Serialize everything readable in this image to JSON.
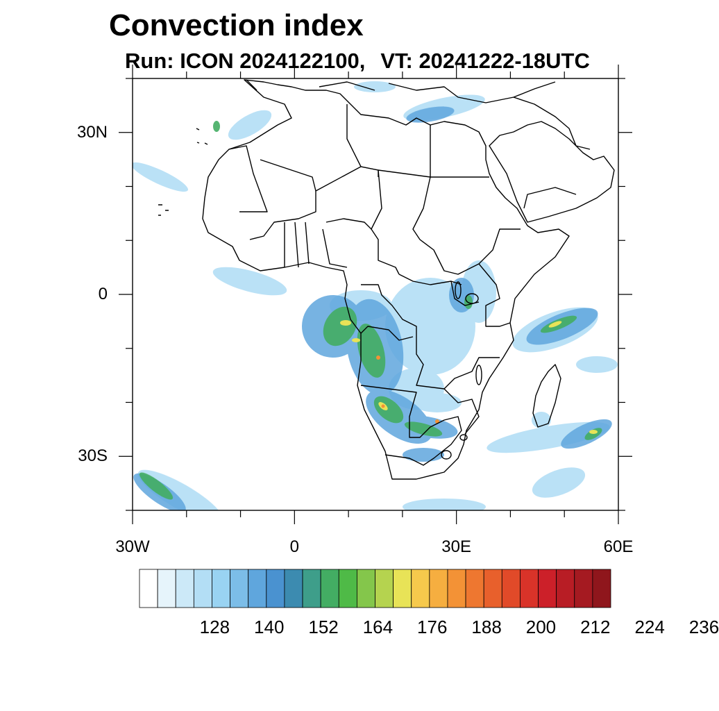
{
  "title": "Convection index",
  "subtitle_run": "Run: ICON 2024122100,",
  "subtitle_vt": "VT: 20241222-18UTC",
  "lat_labels": [
    {
      "text": "30N",
      "lat": 30
    },
    {
      "text": "0",
      "lat": 0
    },
    {
      "text": "30S",
      "lat": -30
    }
  ],
  "lon_labels": [
    {
      "text": "30W",
      "lon": -30
    },
    {
      "text": "0",
      "lon": 0
    },
    {
      "text": "30E",
      "lon": 30
    },
    {
      "text": "60E",
      "lon": 60
    }
  ],
  "map_extent": {
    "lon_min": -30,
    "lon_max": 60,
    "lat_min": -40,
    "lat_max": 40
  },
  "colorbar": {
    "colors": [
      "#ffffff",
      "#e6f4fb",
      "#cce9f8",
      "#b3def5",
      "#99d3f2",
      "#7cbde8",
      "#5fa6dd",
      "#4a92d0",
      "#3c8bb0",
      "#3e9e8a",
      "#43ad63",
      "#4fba47",
      "#84c64b",
      "#b5d34f",
      "#e8e357",
      "#f6c94c",
      "#f6ae40",
      "#f39236",
      "#ee7730",
      "#e8602c",
      "#e14a29",
      "#d93329",
      "#cc2029",
      "#b81d25",
      "#a51a21",
      "#8f161c"
    ],
    "tick_labels": [
      "128",
      "140",
      "152",
      "164",
      "176",
      "188",
      "200",
      "212",
      "224",
      "236"
    ],
    "tick_after_box": [
      3,
      6,
      9,
      12,
      15,
      18,
      21,
      24,
      27,
      30
    ]
  },
  "shading_scale_note": ""
}
